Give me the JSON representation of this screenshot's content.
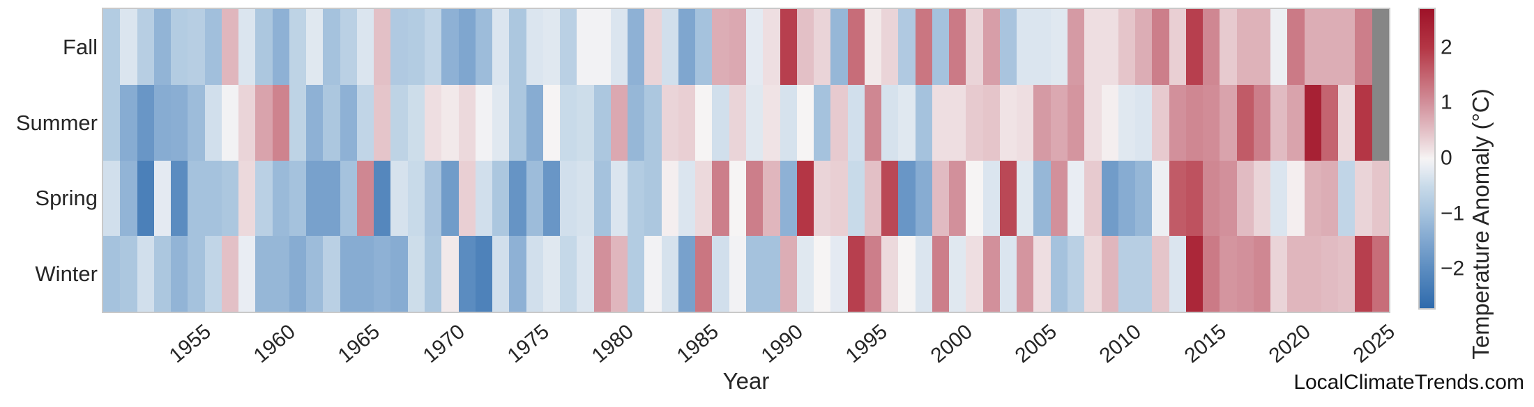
{
  "branding": {
    "text": "LocalClimateTrends.com"
  },
  "chart_data": {
    "type": "heatmap",
    "title": "",
    "xlabel": "Year",
    "ylabel": "",
    "rows": [
      "Fall",
      "Summer",
      "Spring",
      "Winter"
    ],
    "year_start": 1950,
    "year_end": 2025,
    "x_ticks": [
      1955,
      1960,
      1965,
      1970,
      1975,
      1980,
      1985,
      1990,
      1995,
      2000,
      2005,
      2010,
      2015,
      2020,
      2025
    ],
    "vmin": -2.7,
    "vmax": 2.7,
    "null_color": "#868686",
    "grid": false,
    "colormap": [
      {
        "v": -2.7,
        "c": "#2e6aac"
      },
      {
        "v": -2.0,
        "c": "#5b8cc0"
      },
      {
        "v": -1.5,
        "c": "#7fa6cf"
      },
      {
        "v": -1.0,
        "c": "#a5c2dd"
      },
      {
        "v": -0.5,
        "c": "#c8dae9"
      },
      {
        "v": -0.15,
        "c": "#e9edf3"
      },
      {
        "v": 0.0,
        "c": "#f6f4f4"
      },
      {
        "v": 0.15,
        "c": "#f0e3e5"
      },
      {
        "v": 0.5,
        "c": "#e3c0c6"
      },
      {
        "v": 1.0,
        "c": "#d2909b"
      },
      {
        "v": 1.5,
        "c": "#c46470"
      },
      {
        "v": 2.0,
        "c": "#b43645"
      },
      {
        "v": 2.7,
        "c": "#9e1228"
      }
    ],
    "colorbar": {
      "label": "Temperature Anomaly (°C)",
      "ticks": [
        {
          "label": "2",
          "v": 2
        },
        {
          "label": "1",
          "v": 1
        },
        {
          "label": "0",
          "v": 0
        },
        {
          "label": "−1",
          "v": -1
        },
        {
          "label": "−2",
          "v": -2
        }
      ]
    },
    "series": [
      {
        "name": "Fall",
        "values": [
          -0.8,
          -0.3,
          -0.75,
          -1.25,
          -0.8,
          -0.75,
          -1.05,
          0.6,
          -0.3,
          -0.9,
          -1.3,
          -0.65,
          -0.25,
          -1.0,
          -0.7,
          -0.3,
          0.5,
          -0.85,
          -0.8,
          -0.6,
          -1.3,
          -1.5,
          -1.1,
          -0.3,
          -0.9,
          -0.3,
          -0.25,
          -0.7,
          -0.05,
          -0.05,
          -0.3,
          -1.3,
          0.3,
          -0.4,
          -1.5,
          -1.0,
          0.7,
          0.75,
          -0.2,
          0.2,
          1.9,
          0.5,
          0.3,
          -1.2,
          1.4,
          0.1,
          0.3,
          -0.85,
          1.3,
          -1.0,
          1.25,
          0.3,
          0.85,
          -0.95,
          -0.3,
          -0.3,
          -0.25,
          0.9,
          0.2,
          0.2,
          0.45,
          0.7,
          1.2,
          0.35,
          1.9,
          1.1,
          0.4,
          0.65,
          0.65,
          -0.1,
          1.25,
          0.7,
          0.7,
          0.7,
          1.2,
          null
        ]
      },
      {
        "name": "Summer",
        "values": [
          -0.8,
          -1.4,
          -1.8,
          -1.4,
          -1.35,
          -1.1,
          -0.4,
          -0.05,
          0.3,
          0.8,
          1.15,
          -0.65,
          -1.3,
          -0.9,
          -1.3,
          -0.6,
          0.45,
          -0.65,
          -0.45,
          0.2,
          0.1,
          0.25,
          -0.05,
          -0.25,
          -0.9,
          -1.4,
          0.0,
          -0.5,
          -0.45,
          -0.9,
          0.75,
          -1.2,
          -0.9,
          0.3,
          0.35,
          0.0,
          -0.4,
          0.3,
          -0.25,
          0.15,
          -0.35,
          0.0,
          -1.0,
          0.4,
          -0.4,
          1.1,
          -0.35,
          -0.25,
          -1.0,
          0.2,
          0.2,
          0.4,
          0.45,
          0.15,
          0.2,
          0.9,
          0.75,
          0.95,
          0.2,
          0.05,
          -0.25,
          -0.3,
          0.4,
          1.0,
          1.1,
          1.05,
          0.8,
          1.6,
          1.2,
          0.55,
          0.8,
          2.4,
          1.5,
          0.25,
          2.0,
          null
        ]
      },
      {
        "name": "Spring",
        "values": [
          -0.4,
          -1.25,
          -2.25,
          -0.2,
          -2.0,
          -1.0,
          -1.0,
          -0.9,
          0.25,
          -0.7,
          -1.15,
          -1.0,
          -1.6,
          -1.6,
          -1.0,
          1.1,
          -2.1,
          -0.35,
          -0.5,
          -0.95,
          -1.7,
          0.35,
          -0.4,
          -0.9,
          -1.85,
          -1.1,
          -1.8,
          -0.4,
          -0.35,
          -1.0,
          -0.3,
          -0.8,
          -0.9,
          0.05,
          -0.3,
          0.25,
          1.2,
          0.0,
          1.2,
          0.6,
          -1.3,
          2.0,
          0.3,
          0.35,
          -0.5,
          0.5,
          1.8,
          -1.8,
          -1.4,
          0.55,
          1.0,
          0.0,
          -0.3,
          1.8,
          -0.25,
          -1.2,
          1.0,
          -0.15,
          0.4,
          -1.7,
          -1.4,
          -1.2,
          -0.1,
          1.6,
          1.7,
          1.1,
          1.0,
          0.55,
          0.3,
          -0.3,
          0.05,
          0.65,
          0.7,
          -0.6,
          0.3,
          0.45
        ]
      },
      {
        "name": "Winter",
        "values": [
          -1.0,
          -0.9,
          -0.4,
          -0.9,
          -1.25,
          -1.0,
          -0.6,
          0.5,
          -0.15,
          -1.2,
          -1.2,
          -1.4,
          -1.1,
          -0.7,
          -1.4,
          -1.4,
          -1.3,
          -1.4,
          -0.45,
          -0.9,
          0.1,
          -2.0,
          -2.2,
          -0.4,
          -1.3,
          -0.4,
          -0.25,
          -0.55,
          -0.3,
          1.0,
          0.6,
          -0.8,
          -0.05,
          -0.35,
          -1.6,
          1.3,
          -0.4,
          -0.05,
          -1.0,
          -1.0,
          0.7,
          -0.25,
          0.0,
          -0.2,
          1.9,
          1.2,
          0.25,
          0.0,
          -0.3,
          1.2,
          -0.25,
          0.2,
          1.0,
          -0.3,
          0.95,
          0.2,
          -1.0,
          -0.7,
          0.25,
          0.6,
          -0.75,
          -0.75,
          0.45,
          -0.3,
          2.3,
          1.25,
          0.95,
          1.0,
          1.1,
          0.3,
          0.6,
          0.6,
          0.55,
          0.5,
          1.9,
          1.4
        ]
      }
    ]
  }
}
